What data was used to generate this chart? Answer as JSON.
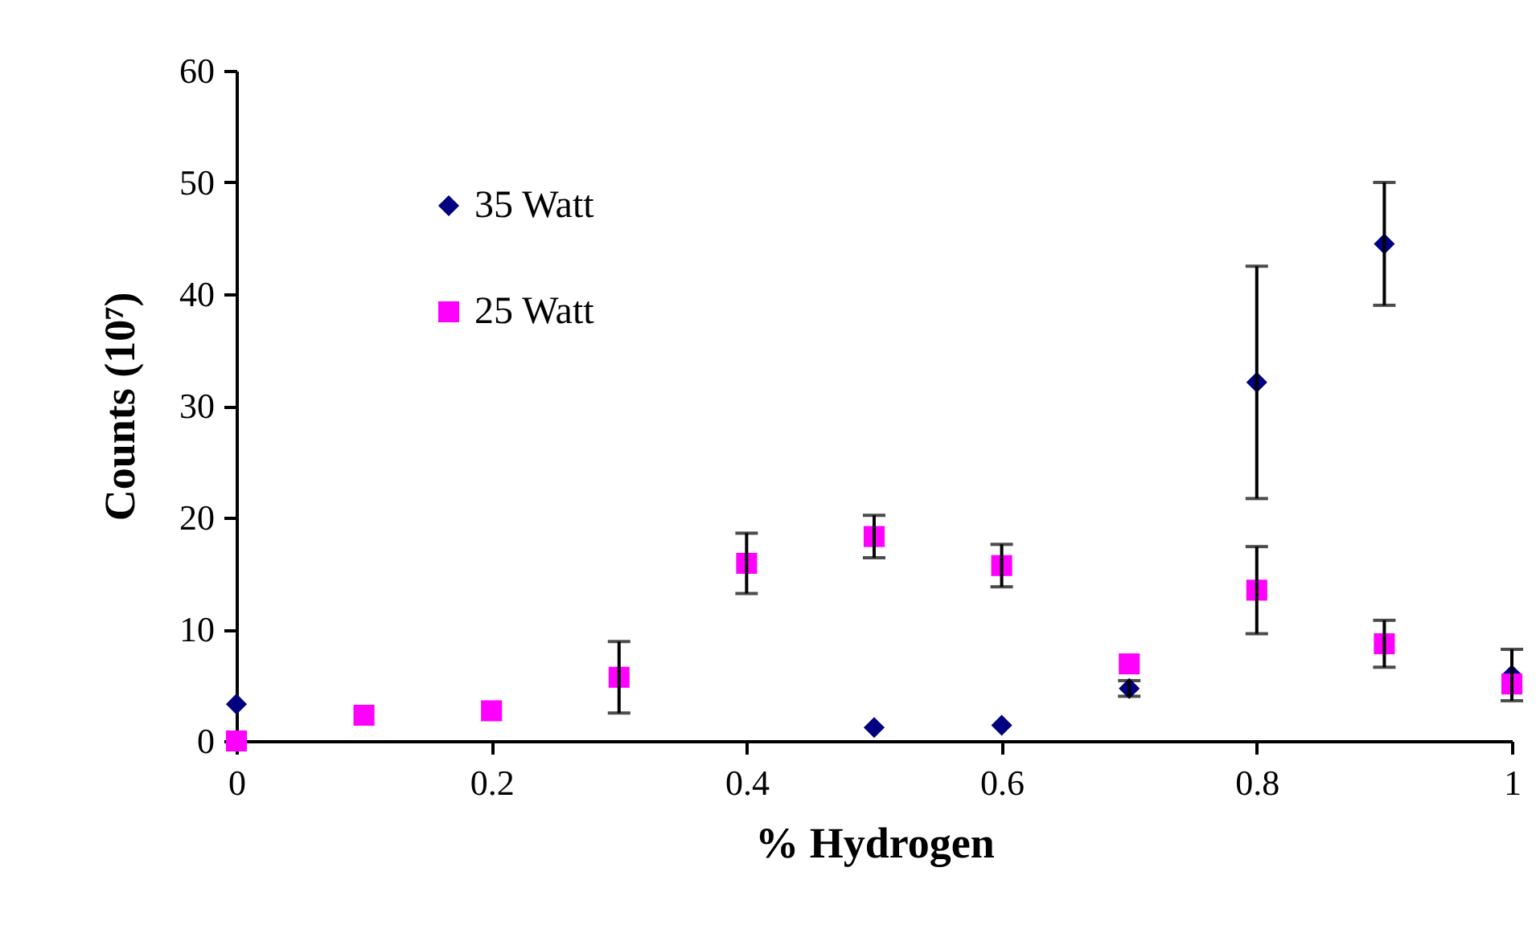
{
  "chart_data": {
    "type": "scatter",
    "xlabel": "% Hydrogen",
    "ylabel": "Counts (10⁷)",
    "xlim": [
      0,
      1
    ],
    "xticks": [
      0,
      0.2,
      0.4,
      0.6,
      0.8,
      1
    ],
    "ylim": [
      0,
      60
    ],
    "yticks": [
      0,
      10,
      20,
      30,
      40,
      50,
      60
    ],
    "grid": false,
    "legend": "top left",
    "series": [
      {
        "name": "35 Watt",
        "color": "#000080",
        "marker": "diamond",
        "x": [
          0,
          0.5,
          0.6,
          0.7,
          0.8,
          0.9,
          1
        ],
        "values": [
          3.3,
          1.2,
          1.4,
          4.7,
          32.1,
          44.5,
          5.9
        ],
        "errors": [
          null,
          null,
          null,
          0.7,
          10.4,
          5.5,
          2.3
        ]
      },
      {
        "name": "25 Watt",
        "color": "#ff00ff",
        "marker": "square",
        "x": [
          0,
          0.1,
          0.2,
          0.3,
          0.4,
          0.5,
          0.6,
          0.7,
          0.8,
          0.9,
          1
        ],
        "values": [
          0,
          2.3,
          2.7,
          5.7,
          15.9,
          18.3,
          15.7,
          6.9,
          13.5,
          8.7,
          5.1
        ],
        "errors": [
          null,
          null,
          null,
          3.2,
          2.7,
          1.9,
          1.9,
          null,
          3.9,
          2.1,
          null
        ]
      }
    ]
  }
}
